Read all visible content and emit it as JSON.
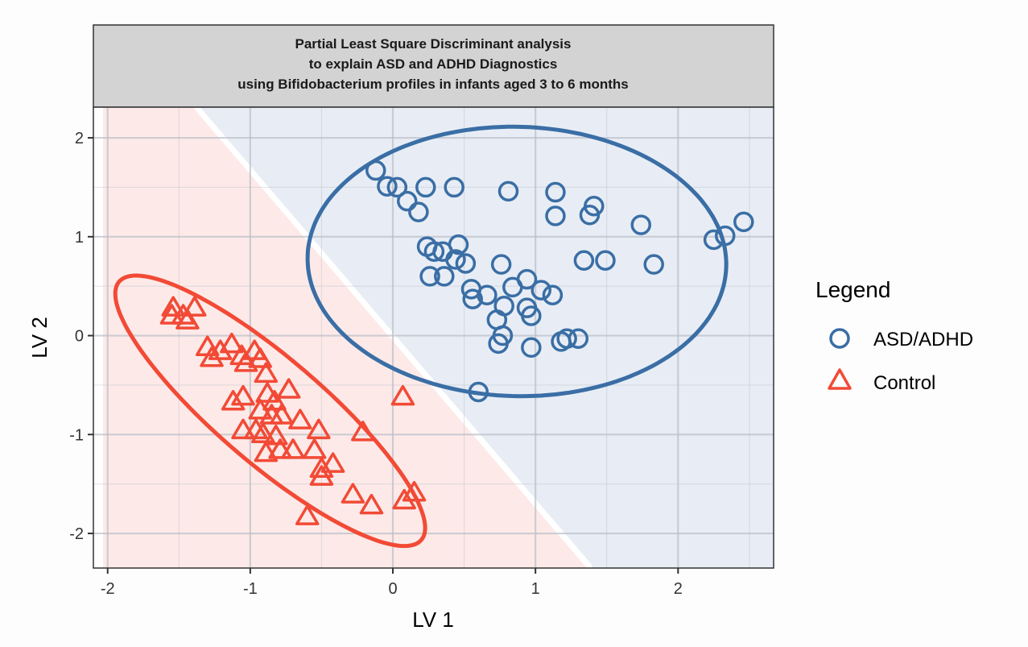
{
  "chart_data": {
    "type": "scatter",
    "title": "Partial Least Square Discriminant analysis\nto explain ASD and ADHD Diagnostics\nusing Bifidobacterium profiles in infants aged 3 to 6 months",
    "title_lines": [
      "Partial Least Square Discriminant analysis",
      "to explain ASD and ADHD Diagnostics",
      "using Bifidobacterium profiles in infants aged 3 to 6 months"
    ],
    "xlabel": "LV 1",
    "ylabel": "LV 2",
    "xlim": [
      -2.1,
      2.67
    ],
    "ylim": [
      -2.35,
      2.31
    ],
    "x_ticks": [
      -2,
      -1,
      0,
      1,
      2
    ],
    "y_ticks": [
      -2,
      -1,
      0,
      1,
      2
    ],
    "x_tick_labels": [
      "-2",
      "-1",
      "0",
      "1",
      "2"
    ],
    "y_tick_labels": [
      "-2",
      "-1",
      "0",
      "1",
      "2"
    ],
    "grid": true,
    "legend": {
      "title": "Legend",
      "placement": "right",
      "entries": [
        {
          "label": "ASD/ADHD",
          "marker": "circle",
          "color": "#3a6ea5"
        },
        {
          "label": "Control",
          "marker": "triangle",
          "color": "#f24a36"
        }
      ]
    },
    "decision_regions": {
      "boundary_line": [
        [
          -1.4,
          2.31
        ],
        [
          1.36,
          -2.34
        ]
      ],
      "asd_region_color": "#e8edf5",
      "control_region_color": "#fdeae8"
    },
    "series": [
      {
        "name": "ASD/ADHD",
        "marker": "circle",
        "color": "#3a6ea5",
        "points": [
          [
            -0.12,
            1.67
          ],
          [
            -0.04,
            1.51
          ],
          [
            0.03,
            1.5
          ],
          [
            0.1,
            1.36
          ],
          [
            0.18,
            1.25
          ],
          [
            0.23,
            1.5
          ],
          [
            0.43,
            1.5
          ],
          [
            0.81,
            1.46
          ],
          [
            1.14,
            1.45
          ],
          [
            1.14,
            1.21
          ],
          [
            1.41,
            1.31
          ],
          [
            1.38,
            1.22
          ],
          [
            1.74,
            1.12
          ],
          [
            2.25,
            0.97
          ],
          [
            2.33,
            1.01
          ],
          [
            2.46,
            1.15
          ],
          [
            0.24,
            0.9
          ],
          [
            0.29,
            0.85
          ],
          [
            0.35,
            0.85
          ],
          [
            0.46,
            0.92
          ],
          [
            0.44,
            0.77
          ],
          [
            0.51,
            0.73
          ],
          [
            0.26,
            0.6
          ],
          [
            0.36,
            0.6
          ],
          [
            0.76,
            0.72
          ],
          [
            1.34,
            0.76
          ],
          [
            1.49,
            0.76
          ],
          [
            1.83,
            0.72
          ],
          [
            0.55,
            0.47
          ],
          [
            0.56,
            0.37
          ],
          [
            0.66,
            0.41
          ],
          [
            0.84,
            0.49
          ],
          [
            0.94,
            0.57
          ],
          [
            1.04,
            0.46
          ],
          [
            1.12,
            0.41
          ],
          [
            0.78,
            0.3
          ],
          [
            0.94,
            0.28
          ],
          [
            0.97,
            0.2
          ],
          [
            0.73,
            0.16
          ],
          [
            0.77,
            0.0
          ],
          [
            0.74,
            -0.08
          ],
          [
            0.97,
            -0.12
          ],
          [
            1.18,
            -0.06
          ],
          [
            1.22,
            -0.03
          ],
          [
            1.3,
            -0.03
          ],
          [
            0.6,
            -0.57
          ]
        ],
        "ellipse": {
          "center": [
            0.87,
            0.75
          ],
          "semi_major": 1.47,
          "semi_minor": 1.36,
          "angle_deg": -8
        }
      },
      {
        "name": "Control",
        "marker": "triangle",
        "color": "#f24a36",
        "points": [
          [
            -1.54,
            0.28
          ],
          [
            -1.55,
            0.2
          ],
          [
            -1.47,
            0.2
          ],
          [
            -1.39,
            0.28
          ],
          [
            -1.44,
            0.15
          ],
          [
            -1.3,
            -0.12
          ],
          [
            -1.27,
            -0.23
          ],
          [
            -1.21,
            -0.16
          ],
          [
            -1.13,
            -0.09
          ],
          [
            -1.06,
            -0.21
          ],
          [
            -1.03,
            -0.28
          ],
          [
            -0.97,
            -0.16
          ],
          [
            -0.93,
            -0.24
          ],
          [
            -0.89,
            -0.39
          ],
          [
            -0.73,
            -0.55
          ],
          [
            -1.05,
            -0.62
          ],
          [
            -1.12,
            -0.67
          ],
          [
            -0.88,
            -0.59
          ],
          [
            -0.83,
            -0.67
          ],
          [
            -0.93,
            -0.76
          ],
          [
            -0.85,
            -0.81
          ],
          [
            -0.78,
            -0.81
          ],
          [
            -0.65,
            -0.86
          ],
          [
            -1.05,
            -0.96
          ],
          [
            -0.96,
            -0.96
          ],
          [
            -0.91,
            -1.0
          ],
          [
            -0.82,
            -1.02
          ],
          [
            -0.52,
            -0.96
          ],
          [
            -0.89,
            -1.19
          ],
          [
            -0.79,
            -1.16
          ],
          [
            -0.7,
            -1.16
          ],
          [
            -0.55,
            -1.16
          ],
          [
            -0.5,
            -1.35
          ],
          [
            -0.42,
            -1.3
          ],
          [
            -0.5,
            -1.43
          ],
          [
            -0.28,
            -1.61
          ],
          [
            -0.15,
            -1.72
          ],
          [
            -0.6,
            -1.83
          ],
          [
            -0.21,
            -0.98
          ],
          [
            0.07,
            -0.62
          ],
          [
            0.08,
            -1.67
          ],
          [
            0.15,
            -1.59
          ]
        ],
        "ellipse": {
          "center": [
            -0.86,
            -0.76
          ],
          "semi_major": 1.69,
          "semi_minor": 0.44,
          "angle_deg": -52.5
        }
      }
    ]
  }
}
